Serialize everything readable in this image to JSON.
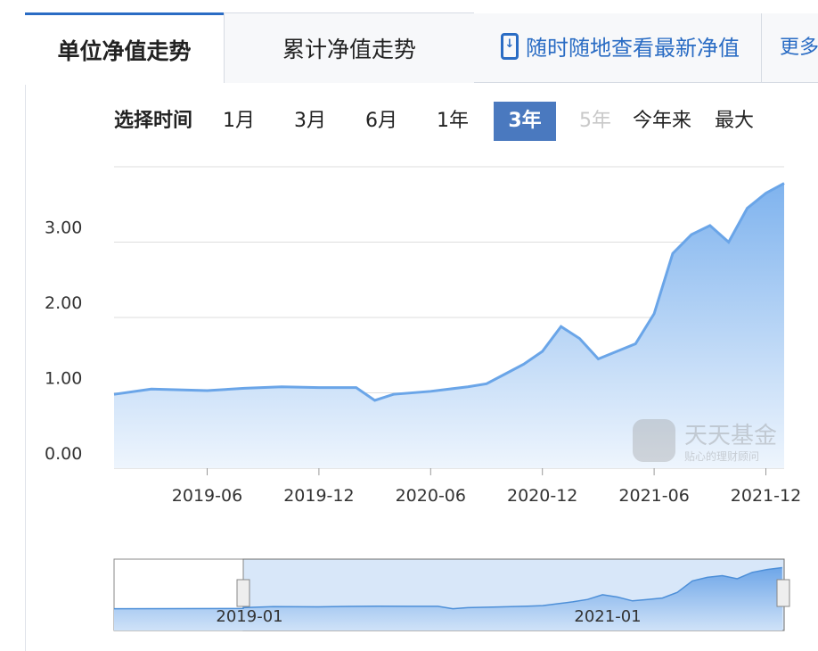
{
  "tabs": {
    "unit_nav": "单位净值走势",
    "cum_nav": "累计净值走势",
    "promo": "随时随地查看最新净值",
    "more": "更多›"
  },
  "icons": {
    "promo": "phone-download-icon"
  },
  "range": {
    "label": "选择时间",
    "options": [
      "1月",
      "3月",
      "6月",
      "1年",
      "3年",
      "5年",
      "今年来",
      "最大"
    ],
    "selected": "3年",
    "disabled": [
      "5年"
    ]
  },
  "colors": {
    "accent": "#2a6cc4",
    "selected_bg": "#4a79bf",
    "line": "#6aa5e8",
    "fill": "#a8cdf4"
  },
  "watermark": {
    "brand": "天天基金",
    "slogan": "贴心的理财顾问",
    "logo": "基金"
  },
  "chart_data": {
    "type": "area",
    "ylim": [
      0,
      4
    ],
    "yticks": [
      "0.00",
      "1.00",
      "2.00",
      "3.00"
    ],
    "xticks": [
      "2019-06",
      "2019-12",
      "2020-06",
      "2020-12",
      "2021-06",
      "2021-12"
    ],
    "grid": true,
    "x": [
      "2019-01",
      "2019-03",
      "2019-06",
      "2019-08",
      "2019-10",
      "2019-12",
      "2020-02",
      "2020-03",
      "2020-04",
      "2020-06",
      "2020-08",
      "2020-09",
      "2020-10",
      "2020-11",
      "2020-12",
      "2021-01",
      "2021-02",
      "2021-03",
      "2021-04",
      "2021-05",
      "2021-06",
      "2021-07",
      "2021-08",
      "2021-09",
      "2021-10",
      "2021-11",
      "2021-12",
      "2022-01"
    ],
    "values": [
      0.98,
      1.05,
      1.03,
      1.06,
      1.08,
      1.07,
      1.07,
      0.9,
      0.98,
      1.02,
      1.08,
      1.12,
      1.25,
      1.38,
      1.55,
      1.88,
      1.72,
      1.45,
      1.55,
      1.65,
      2.05,
      2.85,
      3.1,
      3.22,
      3.0,
      3.45,
      3.65,
      3.78
    ],
    "navigator": {
      "labels": [
        "2019-01",
        "2021-01"
      ]
    }
  }
}
